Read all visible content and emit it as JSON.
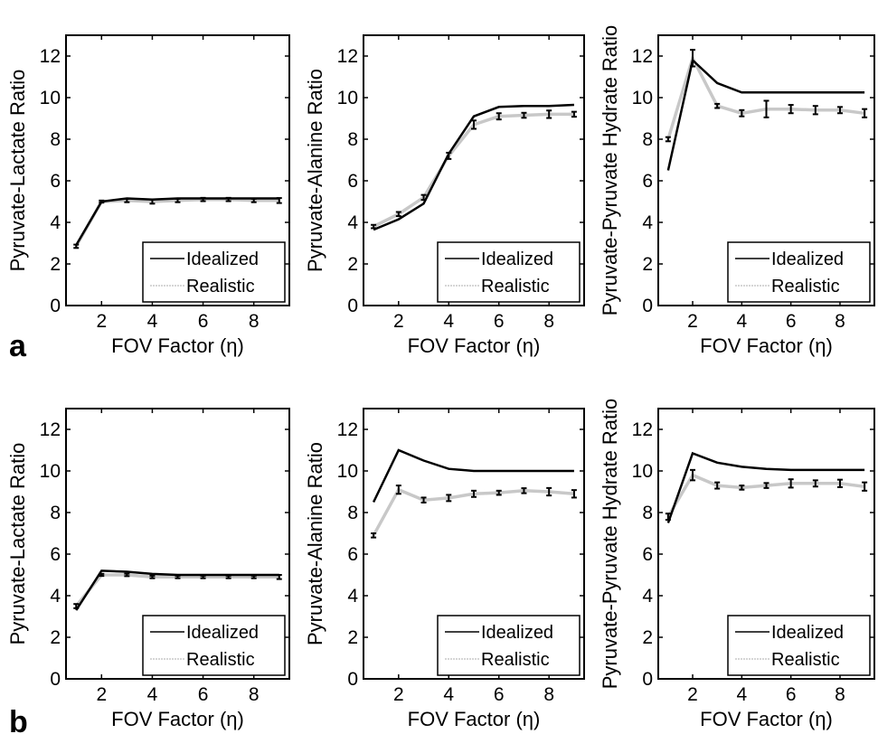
{
  "chart_data": [
    {
      "type": "line",
      "row": "a",
      "xlabel": "FOV Factor (η)",
      "ylabel": "Pyruvate-Lactate Ratio",
      "xlim": [
        0.6,
        9.4
      ],
      "ylim": [
        0,
        13
      ],
      "xticks": [
        2,
        4,
        6,
        8
      ],
      "yticks": [
        0,
        2,
        4,
        6,
        8,
        10,
        12
      ],
      "x": [
        1,
        2,
        3,
        4,
        5,
        6,
        7,
        8,
        9
      ],
      "series": [
        {
          "name": "Idealized",
          "values": [
            2.9,
            5.0,
            5.15,
            5.1,
            5.15,
            5.15,
            5.15,
            5.15,
            5.15
          ]
        },
        {
          "name": "Realistic",
          "values": [
            2.85,
            5.0,
            5.05,
            5.0,
            5.05,
            5.1,
            5.1,
            5.05,
            5.05
          ],
          "error": [
            0.08,
            0.05,
            0.08,
            0.1,
            0.08,
            0.08,
            0.08,
            0.08,
            0.12
          ]
        }
      ],
      "legend": "bottom-right",
      "grid": false
    },
    {
      "type": "line",
      "row": "a",
      "xlabel": "FOV Factor (η)",
      "ylabel": "Pyruvate-Alanine Ratio",
      "xlim": [
        0.6,
        9.4
      ],
      "ylim": [
        0,
        13
      ],
      "xticks": [
        2,
        4,
        6,
        8
      ],
      "yticks": [
        0,
        2,
        4,
        6,
        8,
        10,
        12
      ],
      "x": [
        1,
        2,
        3,
        4,
        5,
        6,
        7,
        8,
        9
      ],
      "series": [
        {
          "name": "Idealized",
          "values": [
            3.65,
            4.15,
            4.9,
            7.3,
            9.1,
            9.55,
            9.6,
            9.6,
            9.65
          ]
        },
        {
          "name": "Realistic",
          "values": [
            3.8,
            4.4,
            5.2,
            7.2,
            8.7,
            9.1,
            9.15,
            9.2,
            9.2
          ],
          "error": [
            0.08,
            0.1,
            0.12,
            0.15,
            0.2,
            0.15,
            0.12,
            0.18,
            0.12
          ]
        }
      ],
      "legend": "bottom-right",
      "grid": false
    },
    {
      "type": "line",
      "row": "a",
      "xlabel": "FOV Factor (η)",
      "ylabel": "Pyruvate-Pyruvate Hydrate Ratio",
      "xlim": [
        0.6,
        9.4
      ],
      "ylim": [
        0,
        13
      ],
      "xticks": [
        2,
        4,
        6,
        8
      ],
      "yticks": [
        0,
        2,
        4,
        6,
        8,
        10,
        12
      ],
      "x": [
        1,
        2,
        3,
        4,
        5,
        6,
        7,
        8,
        9
      ],
      "series": [
        {
          "name": "Idealized",
          "values": [
            6.5,
            11.8,
            10.7,
            10.25,
            10.25,
            10.25,
            10.25,
            10.25,
            10.25
          ]
        },
        {
          "name": "Realistic",
          "values": [
            8.0,
            11.9,
            9.6,
            9.25,
            9.45,
            9.45,
            9.4,
            9.4,
            9.25
          ],
          "error": [
            0.1,
            0.4,
            0.1,
            0.15,
            0.4,
            0.2,
            0.2,
            0.15,
            0.2
          ]
        }
      ],
      "legend": "bottom-right",
      "grid": false
    },
    {
      "type": "line",
      "row": "b",
      "xlabel": "FOV Factor (η)",
      "ylabel": "Pyruvate-Lactate Ratio",
      "xlim": [
        0.6,
        9.4
      ],
      "ylim": [
        0,
        13
      ],
      "xticks": [
        2,
        4,
        6,
        8
      ],
      "yticks": [
        0,
        2,
        4,
        6,
        8,
        10,
        12
      ],
      "x": [
        1,
        2,
        3,
        4,
        5,
        6,
        7,
        8,
        9
      ],
      "series": [
        {
          "name": "Idealized",
          "values": [
            3.3,
            5.2,
            5.15,
            5.05,
            5.0,
            5.0,
            5.0,
            5.0,
            5.0
          ]
        },
        {
          "name": "Realistic",
          "values": [
            3.5,
            5.0,
            5.0,
            4.9,
            4.9,
            4.9,
            4.9,
            4.9,
            4.9
          ],
          "error": [
            0.1,
            0.05,
            0.06,
            0.06,
            0.06,
            0.06,
            0.06,
            0.06,
            0.1
          ]
        }
      ],
      "legend": "bottom-right",
      "grid": false
    },
    {
      "type": "line",
      "row": "b",
      "xlabel": "FOV Factor (η)",
      "ylabel": "Pyruvate-Alanine Ratio",
      "xlim": [
        0.6,
        9.4
      ],
      "ylim": [
        0,
        13
      ],
      "xticks": [
        2,
        4,
        6,
        8
      ],
      "yticks": [
        0,
        2,
        4,
        6,
        8,
        10,
        12
      ],
      "x": [
        1,
        2,
        3,
        4,
        5,
        6,
        7,
        8,
        9
      ],
      "series": [
        {
          "name": "Idealized",
          "values": [
            8.5,
            11.0,
            10.5,
            10.1,
            10.0,
            10.0,
            10.0,
            10.0,
            10.0
          ]
        },
        {
          "name": "Realistic",
          "values": [
            6.9,
            9.1,
            8.6,
            8.7,
            8.9,
            8.95,
            9.05,
            9.0,
            8.9
          ],
          "error": [
            0.1,
            0.2,
            0.12,
            0.15,
            0.15,
            0.1,
            0.12,
            0.18,
            0.18
          ]
        }
      ],
      "legend": "bottom-right",
      "grid": false
    },
    {
      "type": "line",
      "row": "b",
      "xlabel": "FOV Factor (η)",
      "ylabel": "Pyruvate-Pyruvate Hydrate Ratio",
      "xlim": [
        0.6,
        9.4
      ],
      "ylim": [
        0,
        13
      ],
      "xticks": [
        2,
        4,
        6,
        8
      ],
      "yticks": [
        0,
        2,
        4,
        6,
        8,
        10,
        12
      ],
      "x": [
        1,
        2,
        3,
        4,
        5,
        6,
        7,
        8,
        9
      ],
      "series": [
        {
          "name": "Idealized",
          "values": [
            7.5,
            10.85,
            10.4,
            10.2,
            10.1,
            10.05,
            10.05,
            10.05,
            10.05
          ]
        },
        {
          "name": "Realistic",
          "values": [
            7.8,
            9.8,
            9.3,
            9.2,
            9.3,
            9.4,
            9.4,
            9.4,
            9.25
          ],
          "error": [
            0.15,
            0.25,
            0.15,
            0.1,
            0.12,
            0.2,
            0.15,
            0.18,
            0.2
          ]
        }
      ],
      "legend": "bottom-right",
      "grid": false
    }
  ],
  "panel_labels": [
    "a",
    "b"
  ],
  "colors": {
    "idealized": "#000000",
    "realistic": "#c8c8c8",
    "errorbar": "#000000",
    "axis": "#000000"
  }
}
